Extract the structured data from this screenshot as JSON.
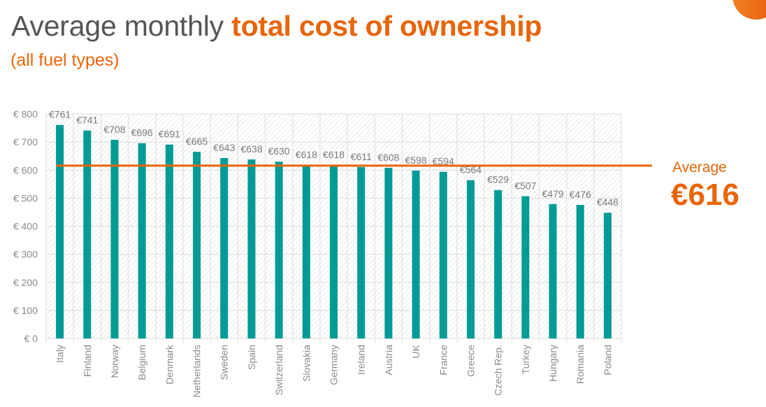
{
  "header": {
    "title_plain": "Average monthly ",
    "title_highlight": "total cost of ownership",
    "subtitle": "(all fuel types)"
  },
  "average_callout": {
    "label": "Average",
    "value": "€616"
  },
  "colors": {
    "accent": "#e8650a",
    "bar": "#009b95",
    "text_gray": "#777777",
    "grid": "#e6e6e6"
  },
  "chart_data": {
    "type": "bar",
    "title": "Average monthly total cost of ownership",
    "subtitle": "(all fuel types)",
    "xlabel": "",
    "ylabel": "",
    "ylim": [
      0,
      800
    ],
    "yticks": [
      0,
      100,
      200,
      300,
      400,
      500,
      600,
      700,
      800
    ],
    "ytick_labels": [
      "€ 0",
      "€ 100",
      "€ 200",
      "€ 300",
      "€ 400",
      "€ 500",
      "€ 600",
      "€ 700",
      "€ 800"
    ],
    "grid": true,
    "categories": [
      "Italy",
      "Finland",
      "Norway",
      "Belgium",
      "Denmark",
      "Netherlands",
      "Sweden",
      "Spain",
      "Switzerland",
      "Slovakia",
      "Germany",
      "Ireland",
      "Austria",
      "UK",
      "France",
      "Greece",
      "Czech Rep.",
      "Turkey",
      "Hungary",
      "Romania",
      "Poland"
    ],
    "values": [
      761,
      741,
      708,
      696,
      691,
      665,
      643,
      638,
      630,
      618,
      618,
      611,
      608,
      598,
      594,
      564,
      529,
      507,
      479,
      476,
      448
    ],
    "data_labels": [
      "€761",
      "€741",
      "€708",
      "€696",
      "€691",
      "€665",
      "€643",
      "€638",
      "€630",
      "€618",
      "€618",
      "€611",
      "€608",
      "€598",
      "€594",
      "€564",
      "€529",
      "€507",
      "€479",
      "€476",
      "€448"
    ],
    "reference_line": {
      "name": "Average",
      "value": 616,
      "label": "€616"
    },
    "legend": "none"
  }
}
